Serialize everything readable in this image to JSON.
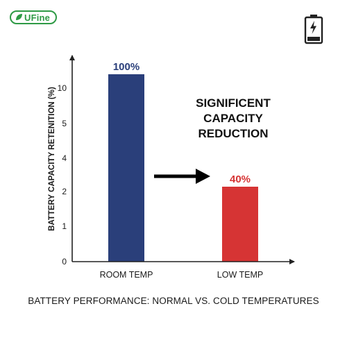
{
  "brand": {
    "logo_text": "UFine"
  },
  "icons": {
    "top_right": "battery-charging-icon",
    "arrow": "right-arrow-icon"
  },
  "colors": {
    "room_bar": "#2a3f7a",
    "low_bar": "#d63434",
    "brand": "#2e9a45"
  },
  "annotation": {
    "lines": [
      "SIGNIFICENT",
      "CAPACITY",
      "REDUCTION"
    ]
  },
  "footer_title": "BATTERY PERFORMANCE: NORMAL VS. COLD TEMPERATURES",
  "chart_data": {
    "type": "bar",
    "title": "BATTERY PERFORMANCE: NORMAL VS. COLD TEMPERATURES",
    "ylabel": "BATTERY CAPACITY RETENITION (%)",
    "xlabel": "",
    "categories": [
      "ROOM TEMP",
      "LOW TEMP"
    ],
    "values": [
      100,
      40
    ],
    "data_labels": [
      "100%",
      "40%"
    ],
    "y_ticks": [
      "0",
      "1",
      "2",
      "4",
      "5",
      "10"
    ],
    "grid": false,
    "legend": "none"
  }
}
